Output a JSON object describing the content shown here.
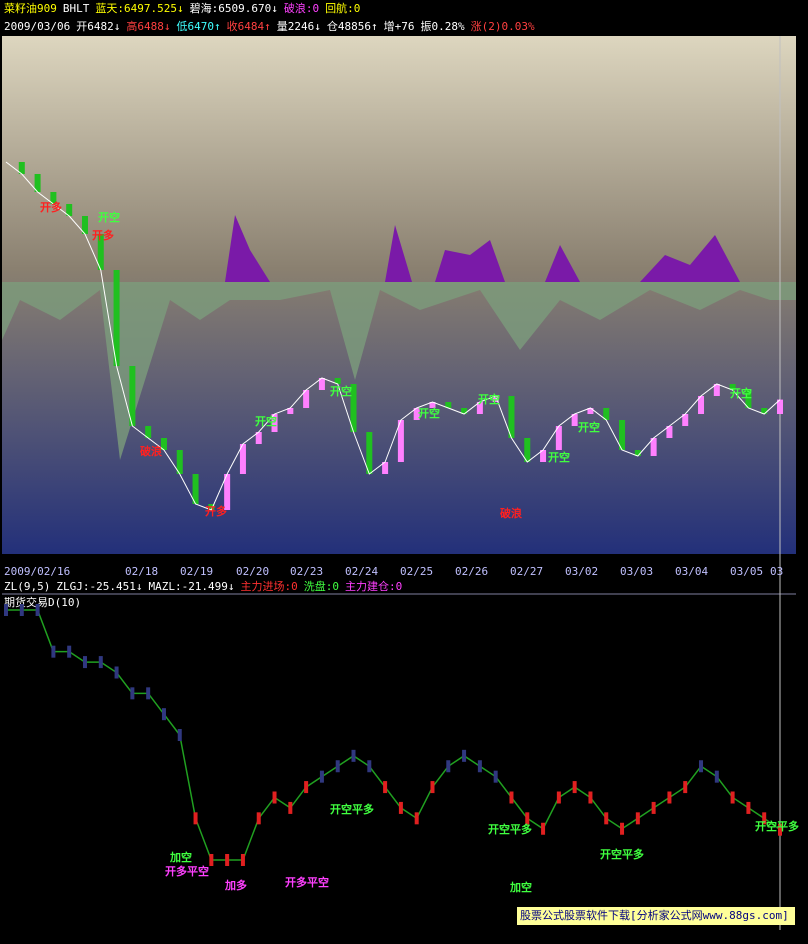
{
  "header": {
    "line1": [
      {
        "text": "菜籽油909",
        "color": "#ffff00"
      },
      {
        "text": "BHLT",
        "color": "#ffffff"
      },
      {
        "text": "蓝天:6497.525↓",
        "color": "#ffff00"
      },
      {
        "text": "碧海:6509.670↓",
        "color": "#ffffff"
      },
      {
        "text": "破浪:0",
        "color": "#ff40ff"
      },
      {
        "text": "回航:0",
        "color": "#ffff00"
      }
    ],
    "line2": [
      {
        "text": "2009/03/06",
        "color": "#ffffff"
      },
      {
        "text": "开6482↓",
        "color": "#ffffff"
      },
      {
        "text": "高6488↓",
        "color": "#ff4040"
      },
      {
        "text": "低6470↑",
        "color": "#40ffff"
      },
      {
        "text": "收6484↑",
        "color": "#ff4040"
      },
      {
        "text": "量2246↓",
        "color": "#ffffff"
      },
      {
        "text": "仓48856↑",
        "color": "#ffffff"
      },
      {
        "text": "增+76",
        "color": "#ffffff"
      },
      {
        "text": "振0.28%",
        "color": "#ffffff"
      },
      {
        "text": "涨(2)0.03%",
        "color": "#ff4040"
      }
    ]
  },
  "dates": [
    "2009/02/16",
    "02/18",
    "02/19",
    "02/20",
    "02/23",
    "02/24",
    "02/25",
    "02/26",
    "02/27",
    "03/02",
    "03/03",
    "03/04",
    "03/05",
    "03"
  ],
  "close": [
    6880,
    6860,
    6830,
    6810,
    6790,
    6760,
    6700,
    6540,
    6440,
    6420,
    6400,
    6360,
    6310,
    6300,
    6360,
    6410,
    6430,
    6460,
    6470,
    6500,
    6520,
    6510,
    6430,
    6360,
    6380,
    6450,
    6470,
    6480,
    6470,
    6460,
    6480,
    6490,
    6420,
    6380,
    6400,
    6440,
    6460,
    6470,
    6450,
    6400,
    6390,
    6420,
    6440,
    6460,
    6490,
    6510,
    6500,
    6470,
    6460,
    6484
  ],
  "indicator": {
    "line1": [
      {
        "text": "ZL(9,5)",
        "color": "#ffffff"
      },
      {
        "text": "ZLGJ:-25.451↓",
        "color": "#ffffff"
      },
      {
        "text": "MAZL:-21.499↓",
        "color": "#ffffff"
      },
      {
        "text": "主力进场:0",
        "color": "#ff3030"
      },
      {
        "text": "洗盘:0",
        "color": "#40ff40"
      },
      {
        "text": "主力建仓:0",
        "color": "#ff40ff"
      }
    ],
    "line2": "期货交易D(10)"
  },
  "zlgj": [
    80,
    80,
    80,
    60,
    60,
    55,
    55,
    50,
    40,
    40,
    30,
    20,
    -20,
    -40,
    -40,
    -40,
    -20,
    -10,
    -15,
    -5,
    0,
    5,
    10,
    5,
    -5,
    -15,
    -20,
    -5,
    5,
    10,
    5,
    0,
    -10,
    -20,
    -25,
    -10,
    -5,
    -10,
    -20,
    -25,
    -20,
    -15,
    -10,
    -5,
    5,
    0,
    -10,
    -15,
    -20,
    -25.451
  ],
  "annotations": [
    {
      "text": "开多",
      "color": "#ff2020"
    },
    {
      "text": "开空",
      "color": "#40ff40"
    },
    {
      "text": "开多",
      "color": "#ff2020"
    },
    {
      "text": "破浪",
      "color": "#ff2020"
    },
    {
      "text": "开多",
      "color": "#ff2020"
    },
    {
      "text": "开空",
      "color": "#40ff40"
    },
    {
      "text": "开空",
      "color": "#40ff40"
    },
    {
      "text": "开空",
      "color": "#40ff40"
    },
    {
      "text": "开空",
      "color": "#40ff40"
    },
    {
      "text": "破浪",
      "color": "#ff2020"
    },
    {
      "text": "开空",
      "color": "#40ff40"
    },
    {
      "text": "开空",
      "color": "#40ff40"
    },
    {
      "text": "开空",
      "color": "#40ff40"
    },
    {
      "text": "开空平多",
      "color": "#40ff40"
    },
    {
      "text": "开空平多",
      "color": "#40ff40"
    },
    {
      "text": "开空平多",
      "color": "#40ff40"
    },
    {
      "text": "加空",
      "color": "#40ff40"
    },
    {
      "text": "开多平空",
      "color": "#ff40ff"
    },
    {
      "text": "加多",
      "color": "#ff40ff"
    },
    {
      "text": "开多平空",
      "color": "#ff40ff"
    },
    {
      "text": "开空平多",
      "color": "#40ff40"
    },
    {
      "text": "加空",
      "color": "#40ff40"
    }
  ],
  "watermark": "股票公式股票软件下载[分析家公式网www.88gs.com]"
}
